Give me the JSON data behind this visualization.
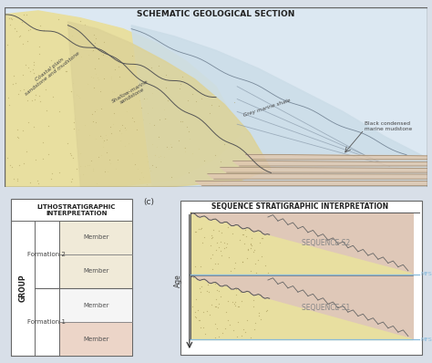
{
  "title_top": "SCHEMATIC GEOLOGICAL SECTION",
  "title_litho": "LITHOSTRATIGRAPHIC\nINTERPRETATION",
  "title_seq": "SEQUENCE STRATIGRAPHIC INTERPRETATION",
  "label_c": "(c)",
  "group_label": "GROUP",
  "age_label": "Age",
  "formation2_label": "Formation 2",
  "formation1_label": "Formation 1",
  "sequence_labels": [
    "SEQUENCE S2",
    "SEQUENCE S1"
  ],
  "mfs_label": "MFS",
  "annotations_top": [
    "Coastal plain\nsandstone and mudstone",
    "Shallow-marine\nsandstone",
    "Grey marine shale",
    "Black condensed\nmarine mudstone"
  ],
  "sandy_color": "#e8dfa0",
  "shale_color": "#ccdde8",
  "marine_pink": "#dfc8b0",
  "litho_yellow": "#f0ead8",
  "litho_pink": "#ecd5c8",
  "litho_white": "#f5f5f5",
  "line_color": "#555555",
  "mfs_color": "#88bbdd",
  "fig_bg": "#d8dfe8",
  "panel_bg": "#dce8f2",
  "seq_sandy": "#e8dfa0",
  "seq_marine": "#dfc8b8"
}
